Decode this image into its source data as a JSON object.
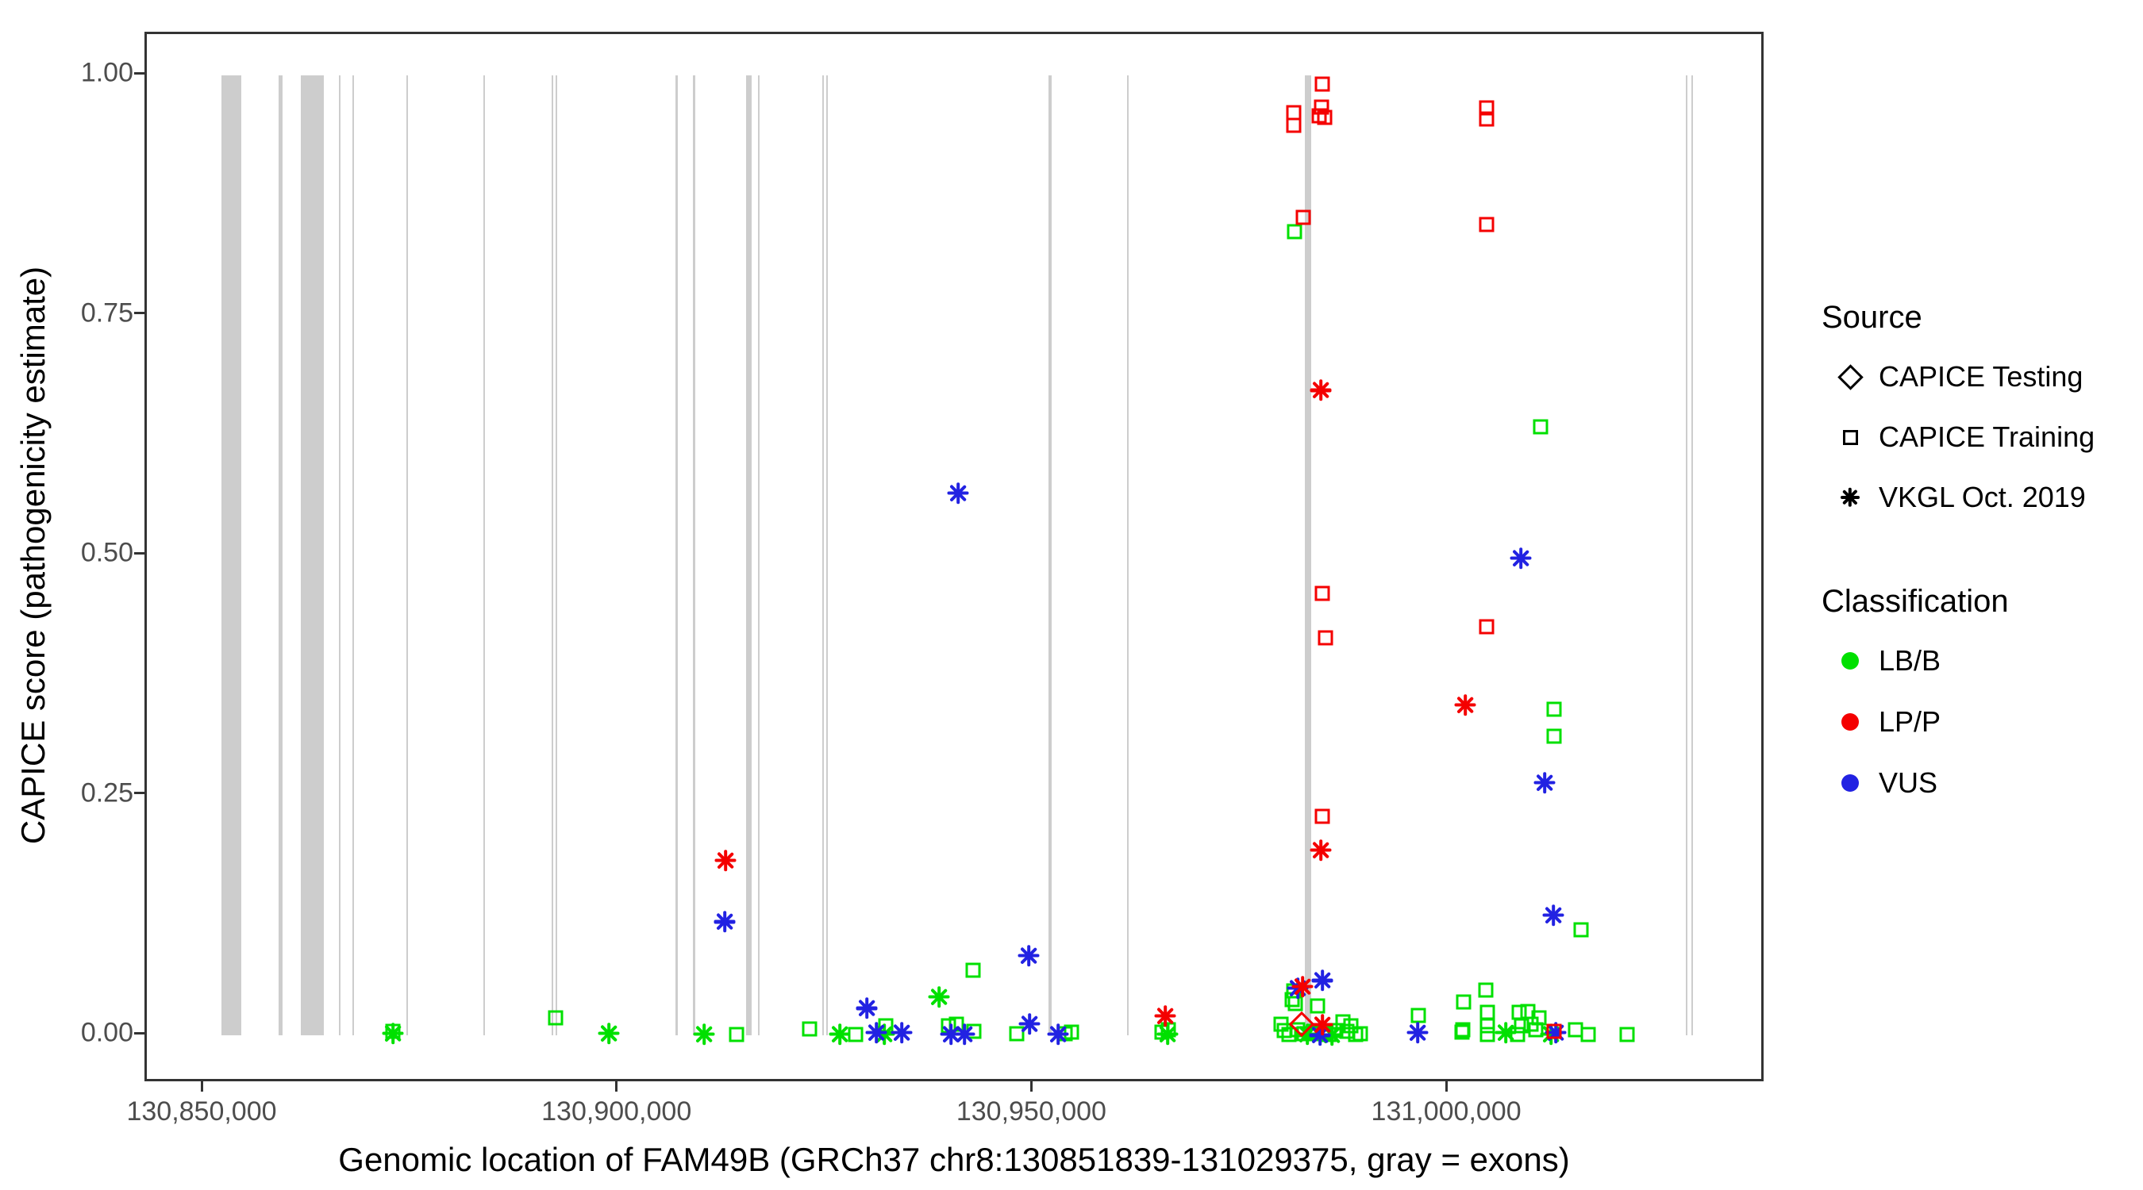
{
  "labels": {
    "x_title": "Genomic location of FAM49B (GRCh37 chr8:130851839-131029375, gray = exons)",
    "y_title": "CAPICE score (pathogenicity estimate)"
  },
  "legend": {
    "source": {
      "title": "Source",
      "items": [
        {
          "label": "CAPICE Testing",
          "marker": "diamond"
        },
        {
          "label": "CAPICE Training",
          "marker": "square"
        },
        {
          "label": "VKGL Oct. 2019",
          "marker": "asterisk"
        }
      ]
    },
    "classification": {
      "title": "Classification",
      "items": [
        {
          "label": "LB/B",
          "color": "#00e000"
        },
        {
          "label": "LP/P",
          "color": "#f40000"
        },
        {
          "label": "VUS",
          "color": "#2222e2"
        }
      ]
    }
  },
  "chart_data": {
    "type": "scatter",
    "title": "",
    "xlabel": "Genomic location of FAM49B (GRCh37 chr8:130851839-131029375, gray = exons)",
    "ylabel": "CAPICE score (pathogenicity estimate)",
    "xlim": [
      130843115,
      131038250
    ],
    "ylim": [
      -0.0504,
      1.043
    ],
    "grid": false,
    "legend_position": "right",
    "x_ticks": [
      {
        "value": 130850000,
        "label": "130,850,000"
      },
      {
        "value": 130900000,
        "label": "130,900,000"
      },
      {
        "value": 130950000,
        "label": "130,950,000"
      },
      {
        "value": 131000000,
        "label": "131,000,000"
      }
    ],
    "y_ticks": [
      {
        "value": 0.0,
        "label": "0.00"
      },
      {
        "value": 0.25,
        "label": "0.25"
      },
      {
        "value": 0.5,
        "label": "0.50"
      },
      {
        "value": 0.75,
        "label": "0.75"
      },
      {
        "value": 1.0,
        "label": "1.00"
      }
    ],
    "exon_color": "#cdcdcd",
    "exons": [
      [
        130852100,
        130854500
      ],
      [
        130859000,
        130859450
      ],
      [
        130861650,
        130864450
      ],
      [
        130866250,
        130866450
      ],
      [
        130867900,
        130868100
      ],
      [
        130874400,
        130874600
      ],
      [
        130883650,
        130883850
      ],
      [
        130891850,
        130892050
      ],
      [
        130892350,
        130892550
      ],
      [
        130906850,
        130907100
      ],
      [
        130908950,
        130909250
      ],
      [
        130915350,
        130916000
      ],
      [
        130916800,
        130917000
      ],
      [
        130924500,
        130924700
      ],
      [
        130925000,
        130925200
      ],
      [
        130951800,
        130952200
      ],
      [
        130961250,
        130961450
      ],
      [
        130982700,
        130983400
      ],
      [
        131028600,
        131028800
      ],
      [
        131029250,
        131029450
      ]
    ],
    "class_colors": {
      "LB/B": "#00e000",
      "LP/P": "#f40000",
      "VUS": "#2222e2"
    },
    "marker_sources": {
      "diamond": "CAPICE Testing",
      "square": "CAPICE Training",
      "asterisk": "VKGL Oct. 2019"
    },
    "points_format": [
      "marker",
      "classification",
      "genomic_position",
      "capice_score"
    ],
    "points": [
      [
        "asterisk",
        "LB/B",
        130872750,
        0.002
      ],
      [
        "square",
        "LB/B",
        130872750,
        0.004
      ],
      [
        "square",
        "LB/B",
        130892350,
        0.018
      ],
      [
        "asterisk",
        "LB/B",
        130898750,
        0.002
      ],
      [
        "asterisk",
        "LP/P",
        130912800,
        0.182
      ],
      [
        "asterisk",
        "VUS",
        130912700,
        0.118
      ],
      [
        "asterisk",
        "LB/B",
        130910250,
        0.001
      ],
      [
        "square",
        "LB/B",
        130914150,
        0.001
      ],
      [
        "square",
        "LB/B",
        130922950,
        0.007
      ],
      [
        "asterisk",
        "LB/B",
        130926600,
        0.001
      ],
      [
        "square",
        "LB/B",
        130928500,
        0.001
      ],
      [
        "asterisk",
        "VUS",
        130929900,
        0.028
      ],
      [
        "asterisk",
        "VUS",
        130931050,
        0.003
      ],
      [
        "square",
        "LB/B",
        130932200,
        0.01
      ],
      [
        "asterisk",
        "LB/B",
        130932000,
        0.001
      ],
      [
        "asterisk",
        "VUS",
        130934050,
        0.003
      ],
      [
        "asterisk",
        "LB/B",
        130938600,
        0.04
      ],
      [
        "square",
        "LB/B",
        130939750,
        0.01
      ],
      [
        "square",
        "LB/B",
        130940700,
        0.012
      ],
      [
        "asterisk",
        "VUS",
        130940050,
        0.001
      ],
      [
        "asterisk",
        "VUS",
        130941650,
        0.001
      ],
      [
        "square",
        "LB/B",
        130942800,
        0.004
      ],
      [
        "square",
        "LB/B",
        130942650,
        0.068
      ],
      [
        "asterisk",
        "VUS",
        130949400,
        0.083
      ],
      [
        "asterisk",
        "VUS",
        130940900,
        0.565
      ],
      [
        "square",
        "LB/B",
        130947900,
        0.002
      ],
      [
        "asterisk",
        "VUS",
        130949500,
        0.012
      ],
      [
        "asterisk",
        "VUS",
        130952950,
        0.001
      ],
      [
        "square",
        "LB/B",
        130953800,
        0.002
      ],
      [
        "square",
        "LB/B",
        130954550,
        0.003
      ],
      [
        "asterisk",
        "LP/P",
        130965850,
        0.02
      ],
      [
        "square",
        "LB/B",
        130965500,
        0.003
      ],
      [
        "asterisk",
        "LB/B",
        130966150,
        0.001
      ],
      [
        "square",
        "LB/B",
        130966250,
        0.006
      ],
      [
        "asterisk",
        "VUS",
        130981850,
        0.049
      ],
      [
        "asterisk",
        "LP/P",
        130982400,
        0.051
      ],
      [
        "asterisk",
        "VUS",
        130984800,
        0.057
      ],
      [
        "square",
        "LB/B",
        130981350,
        0.046
      ],
      [
        "square",
        "LB/B",
        130981150,
        0.037
      ],
      [
        "square",
        "LB/B",
        130981550,
        0.033
      ],
      [
        "square",
        "LB/B",
        130984200,
        0.031
      ],
      [
        "diamond",
        "LP/P",
        130982300,
        0.012
      ],
      [
        "asterisk",
        "LP/P",
        130984800,
        0.011
      ],
      [
        "asterisk",
        "VUS",
        130984500,
        0.0
      ],
      [
        "square",
        "LB/B",
        130979800,
        0.012
      ],
      [
        "square",
        "LB/B",
        130980200,
        0.005
      ],
      [
        "square",
        "LB/B",
        130980750,
        0.001
      ],
      [
        "square",
        "LB/B",
        130981800,
        0.006
      ],
      [
        "square",
        "LB/B",
        130982600,
        0.002
      ],
      [
        "square",
        "LB/B",
        130983450,
        0.002
      ],
      [
        "square",
        "LB/B",
        130983950,
        0.004
      ],
      [
        "square",
        "LB/B",
        130985200,
        0.003
      ],
      [
        "square",
        "LB/B",
        130985550,
        0.001
      ],
      [
        "square",
        "LB/B",
        130986400,
        0.005
      ],
      [
        "square",
        "LB/B",
        130987300,
        0.014
      ],
      [
        "square",
        "LB/B",
        130987750,
        0.004
      ],
      [
        "square",
        "LB/B",
        130988250,
        0.01
      ],
      [
        "square",
        "LB/B",
        130988800,
        0.001
      ],
      [
        "square",
        "LB/B",
        130989400,
        0.002
      ],
      [
        "asterisk",
        "LB/B",
        130982950,
        0.001
      ],
      [
        "asterisk",
        "LB/B",
        130985950,
        0.0
      ],
      [
        "square",
        "LP/P",
        130984800,
        0.991
      ],
      [
        "square",
        "LP/P",
        130984700,
        0.967
      ],
      [
        "square",
        "LP/P",
        130984400,
        0.958
      ],
      [
        "square",
        "LP/P",
        130985100,
        0.956
      ],
      [
        "square",
        "LP/P",
        130981350,
        0.961
      ],
      [
        "square",
        "LP/P",
        130981350,
        0.948
      ],
      [
        "square",
        "LP/P",
        130982500,
        0.852
      ],
      [
        "square",
        "LB/B",
        130981450,
        0.837
      ],
      [
        "asterisk",
        "LP/P",
        130984600,
        0.672
      ],
      [
        "square",
        "LP/P",
        130984800,
        0.46
      ],
      [
        "square",
        "LP/P",
        130985200,
        0.414
      ],
      [
        "square",
        "LP/P",
        130984800,
        0.228
      ],
      [
        "asterisk",
        "LP/P",
        130984600,
        0.193
      ],
      [
        "square",
        "LP/P",
        131004600,
        0.966
      ],
      [
        "square",
        "LP/P",
        131004600,
        0.955
      ],
      [
        "square",
        "LP/P",
        131004600,
        0.845
      ],
      [
        "square",
        "LP/P",
        131004600,
        0.426
      ],
      [
        "asterisk",
        "LP/P",
        131002000,
        0.344
      ],
      [
        "asterisk",
        "VUS",
        131008700,
        0.497
      ],
      [
        "square",
        "LB/B",
        131011100,
        0.634
      ],
      [
        "square",
        "LB/B",
        131012700,
        0.34
      ],
      [
        "square",
        "LB/B",
        131012700,
        0.312
      ],
      [
        "asterisk",
        "VUS",
        131011550,
        0.263
      ],
      [
        "asterisk",
        "VUS",
        131012600,
        0.125
      ],
      [
        "square",
        "LB/B",
        131015950,
        0.11
      ],
      [
        "square",
        "LB/B",
        130996350,
        0.021
      ],
      [
        "asterisk",
        "VUS",
        130996250,
        0.003
      ],
      [
        "square",
        "LB/B",
        131001800,
        0.035
      ],
      [
        "square",
        "LB/B",
        131004500,
        0.047
      ],
      [
        "square",
        "LB/B",
        131001600,
        0.003
      ],
      [
        "square",
        "LB/B",
        131001700,
        0.006
      ],
      [
        "square",
        "LB/B",
        131004700,
        0.024
      ],
      [
        "square",
        "LB/B",
        131004700,
        0.01
      ],
      [
        "square",
        "LB/B",
        131004700,
        0.001
      ],
      [
        "asterisk",
        "LB/B",
        131006900,
        0.003
      ],
      [
        "square",
        "LB/B",
        131008500,
        0.024
      ],
      [
        "square",
        "LB/B",
        131009550,
        0.025
      ],
      [
        "square",
        "LB/B",
        131008800,
        0.01
      ],
      [
        "square",
        "LB/B",
        131009950,
        0.012
      ],
      [
        "square",
        "LB/B",
        131008300,
        0.001
      ],
      [
        "square",
        "LB/B",
        131010500,
        0.006
      ],
      [
        "square",
        "LB/B",
        131010900,
        0.018
      ],
      [
        "square",
        "LP/P",
        131012700,
        0.004
      ],
      [
        "asterisk",
        "VUS",
        131012900,
        0.003
      ],
      [
        "asterisk",
        "LB/B",
        131012300,
        0.001
      ],
      [
        "square",
        "LB/B",
        131015300,
        0.006
      ],
      [
        "square",
        "LB/B",
        131016800,
        0.001
      ],
      [
        "square",
        "LB/B",
        131021500,
        0.001
      ]
    ]
  }
}
